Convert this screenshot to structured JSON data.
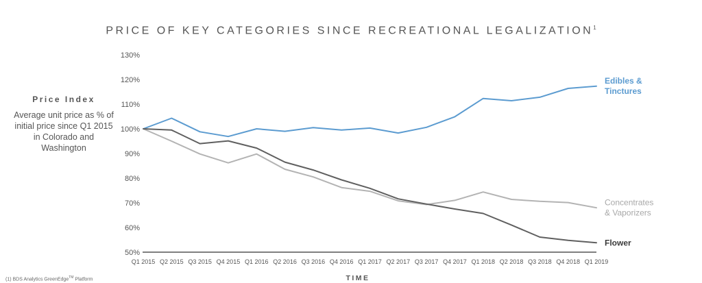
{
  "chart_data": {
    "type": "line",
    "title": "PRICE OF KEY CATEGORIES SINCE RECREATIONAL LEGALIZATION",
    "title_footnote_marker": "1",
    "ylabel": "Price Index",
    "ylabel_description": "Average unit price as % of initial price since Q1 2015 in Colorado and Washington",
    "xlabel": "TIME",
    "y_ticks": [
      "130%",
      "120%",
      "110%",
      "100%",
      "90%",
      "80%",
      "70%",
      "60%",
      "50%"
    ],
    "ylim": [
      50,
      130
    ],
    "categories": [
      "Q1 2015",
      "Q2 2015",
      "Q3 2015",
      "Q4 2015",
      "Q1 2016",
      "Q2 2016",
      "Q3 2016",
      "Q4 2016",
      "Q1 2017",
      "Q2 2017",
      "Q3 2017",
      "Q4 2017",
      "Q1 2018",
      "Q2 2018",
      "Q3 2018",
      "Q4 2018",
      "Q1 2019"
    ],
    "series": [
      {
        "name": "Edibles & Tinctures",
        "color": "#5b9bd0",
        "values": [
          100,
          104.3,
          98.8,
          96.9,
          100,
          99,
          100.5,
          99.5,
          100.3,
          98.3,
          100.6,
          104.9,
          112.3,
          111.4,
          112.8,
          116.4,
          117.3
        ]
      },
      {
        "name": "Concentrates & Vaporizers",
        "color": "#b3b3b3",
        "values": [
          100,
          95,
          89.8,
          86.2,
          89.8,
          83.6,
          80.5,
          76.2,
          74.7,
          70.8,
          69.3,
          71,
          74.4,
          71.4,
          70.6,
          70.1,
          68
        ]
      },
      {
        "name": "Flower",
        "color": "#5f5f5f",
        "values": [
          100,
          99.5,
          94,
          95.1,
          92.2,
          86.5,
          83.3,
          79.3,
          75.9,
          71.6,
          69.5,
          67.5,
          65.7,
          61,
          56.1,
          54.8,
          53.8
        ]
      }
    ],
    "legend_labels": [
      {
        "lines": [
          "Edibles &",
          "Tinctures"
        ],
        "color": "#5b9bd0",
        "bold": true
      },
      {
        "lines": [
          "Concentrates",
          "& Vaporizers"
        ],
        "color": "#a8a8a8",
        "bold": false
      },
      {
        "lines": [
          "Flower"
        ],
        "color": "#3a3a3a",
        "bold": true
      }
    ],
    "grid": false,
    "legend": "right, at line ends"
  },
  "footnote": {
    "prefix": "(1) BDS Analytics GreenEdge",
    "suffix": "TM",
    "tail": " Platform"
  }
}
